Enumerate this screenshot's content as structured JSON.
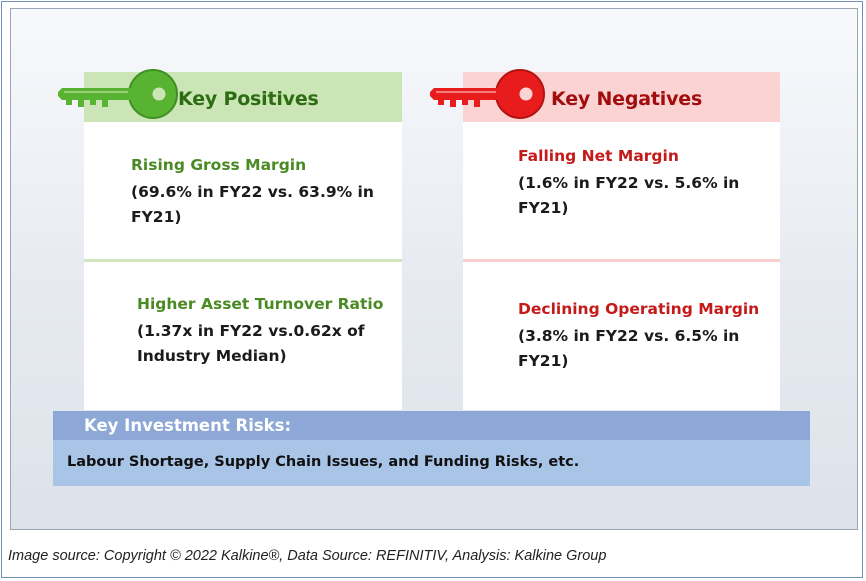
{
  "positives": {
    "header": "Key Positives",
    "items": [
      {
        "title": "Rising Gross Margin",
        "body": "(69.6% in FY22 vs. 63.9% in FY21)"
      },
      {
        "title": "Higher Asset Turnover Ratio",
        "body": "(1.37x in FY22 vs.0.62x of Industry Median)"
      }
    ],
    "accent_color": "#4a8a24"
  },
  "negatives": {
    "header": "Key Negatives",
    "items": [
      {
        "title": "Falling Net Margin",
        "body": "(1.6% in FY22 vs. 5.6% in FY21)"
      },
      {
        "title": "Declining Operating Margin",
        "body": "(3.8% in FY22 vs. 6.5% in FY21)"
      }
    ],
    "accent_color": "#c51a1a"
  },
  "risks": {
    "header": "Key Investment Risks:",
    "body": "Labour Shortage, Supply Chain Issues, and Funding Risks, etc."
  },
  "caption": "Image source: Copyright © 2022 Kalkine®, Data Source: REFINITIV, Analysis: Kalkine Group",
  "icons": {
    "positives": "green-key-icon",
    "negatives": "red-key-icon"
  }
}
